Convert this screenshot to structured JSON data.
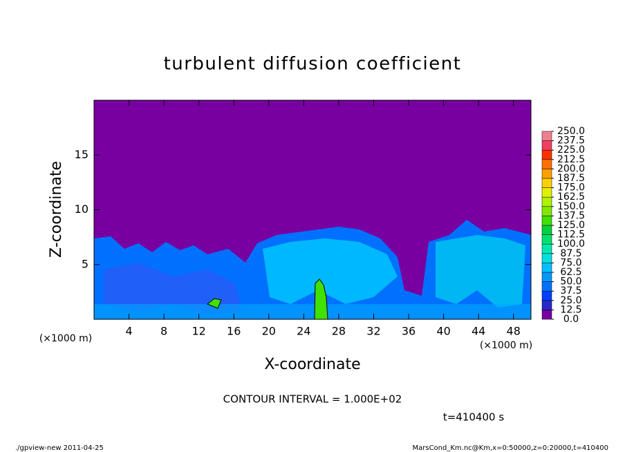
{
  "chart_data": {
    "type": "contour",
    "title": "turbulent diffusion coefficient",
    "x_label": "X-coordinate",
    "y_label": "Z-coordinate",
    "x_unit": "(×1000 m)",
    "xlim": [
      0,
      50
    ],
    "xticks": [
      4,
      8,
      12,
      16,
      20,
      24,
      28,
      32,
      36,
      40,
      44,
      48
    ],
    "ylim": [
      0,
      20
    ],
    "yticks": [
      5,
      10,
      15
    ],
    "colorbar": {
      "levels": [
        {
          "value": 0,
          "label": "0.0"
        },
        12.5,
        {
          "value": 25,
          "label": "25.0"
        },
        37.5,
        {
          "value": 50,
          "label": "50.0"
        },
        62.5,
        {
          "value": 75,
          "label": "75.0"
        },
        87.5,
        {
          "value": 100,
          "label": "100.0"
        },
        112.5,
        {
          "value": 125,
          "label": "125.0"
        },
        137.5,
        {
          "value": 150,
          "label": "150.0"
        },
        162.5,
        {
          "value": 175,
          "label": "175.0"
        },
        187.5,
        {
          "value": 200,
          "label": "200.0"
        },
        212.5,
        {
          "value": 225,
          "label": "225.0"
        },
        237.5,
        {
          "value": 250,
          "label": "250.0"
        }
      ],
      "colors": [
        "#7800a0",
        "#2828c8",
        "#0040ff",
        "#0070ff",
        "#0098ff",
        "#00c0ff",
        "#00e0e0",
        "#00e8b0",
        "#00e070",
        "#00d040",
        "#40e000",
        "#80e800",
        "#b0f000",
        "#e0f000",
        "#ffd000",
        "#ffa000",
        "#ff7000",
        "#ff3000",
        "#f04060",
        "#f08090"
      ]
    },
    "contour_interval": "CONTOUR INTERVAL = 1.000E+02",
    "time_label": "t=410400 s",
    "footer_left": "./gpview-new  2011-04-25",
    "footer_right": "MarsCond_Km.nc@Km,x=0:50000,z=0:20000,t=410400"
  }
}
